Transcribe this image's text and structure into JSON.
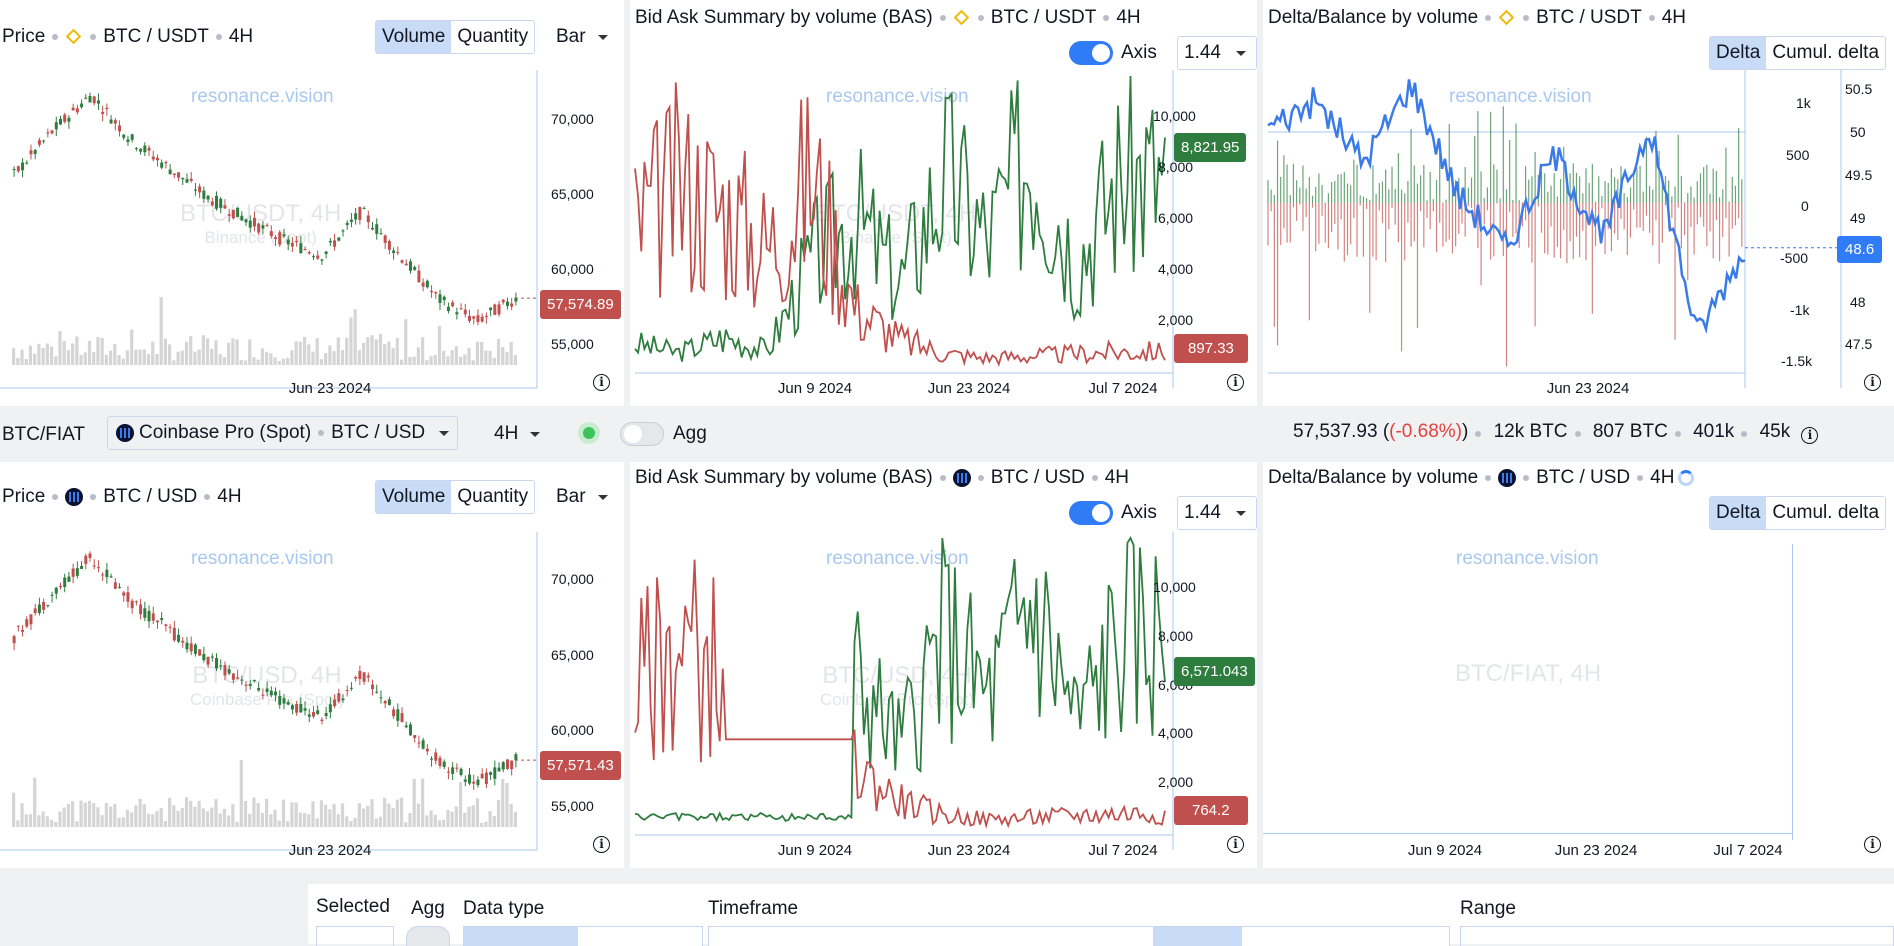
{
  "colors": {
    "up": "#2e7d3e",
    "down": "#c0504d",
    "accent": "#2f7cf6",
    "blueline": "#3b7be8",
    "watermark": "#a9c8f0",
    "volume": "#d5d5d5"
  },
  "watermark": "resonance.vision",
  "top": {
    "price": {
      "title": "Price",
      "pair": "BTC / USDT",
      "tf": "4H",
      "seg": [
        "Volume",
        "Quantity"
      ],
      "chart_type": "Bar",
      "ghost": "BTC/USDT, 4H",
      "ghost_sub": "Binance (Spot)",
      "yticks": [
        "70,000",
        "65,000",
        "60,000",
        "55,000"
      ],
      "xlabel": "Jun 23 2024",
      "last_price": "57,574.89"
    },
    "bas": {
      "title": "Bid Ask Summary by volume (BAS)",
      "pair": "BTC / USDT",
      "tf": "4H",
      "axis_label": "Axis",
      "ratio": "1.44",
      "ghost": "BTC/USDT, 4H",
      "ghost_sub": "Binance (Spot)",
      "yticks": [
        "10,000",
        "8,000",
        "6,000",
        "4,000",
        "2,000"
      ],
      "xlabels": [
        "Jun 9 2024",
        "Jun 23 2024",
        "Jul 7 2024"
      ],
      "bid_tag": "8,821.95",
      "ask_tag": "897.33"
    },
    "delta": {
      "title": "Delta/Balance by volume",
      "pair": "BTC / USDT",
      "tf": "4H",
      "seg": [
        "Delta",
        "Cumul. delta"
      ],
      "yticks_left": [
        "1k",
        "500",
        "0",
        "-500",
        "-1k",
        "-1.5k"
      ],
      "yticks_right": [
        "50.5",
        "50",
        "49.5",
        "49",
        "48",
        "47.5"
      ],
      "xlabel": "Jun 23 2024",
      "balance_tag": "48.6"
    }
  },
  "toolbar": {
    "group": "BTC/FIAT",
    "exchange": "Coinbase Pro (Spot)",
    "pair": "BTC / USD",
    "tf": "4H",
    "agg": "Agg",
    "stats": {
      "price": "57,537.93",
      "change": "(-0.68%)",
      "v1": "12k BTC",
      "v2": "807 BTC",
      "v3": "401k",
      "v4": "45k"
    }
  },
  "bottom": {
    "price": {
      "title": "Price",
      "pair": "BTC / USD",
      "tf": "4H",
      "seg": [
        "Volume",
        "Quantity"
      ],
      "chart_type": "Bar",
      "ghost": "BTC/USD, 4H",
      "ghost_sub": "Coinbase Pro (Spot)",
      "yticks": [
        "70,000",
        "65,000",
        "60,000",
        "55,000"
      ],
      "xlabel": "Jun 23 2024",
      "last_price": "57,571.43"
    },
    "bas": {
      "title": "Bid Ask Summary by volume (BAS)",
      "pair": "BTC / USD",
      "tf": "4H",
      "axis_label": "Axis",
      "ratio": "1.44",
      "ghost": "BTC/USD, 4H",
      "ghost_sub": "Coinbase Pro (Spot)",
      "yticks": [
        "10,000",
        "8,000",
        "6,000",
        "4,000",
        "2,000"
      ],
      "xlabels": [
        "Jun 9 2024",
        "Jun 23 2024",
        "Jul 7 2024"
      ],
      "bid_tag": "6,571.043",
      "ask_tag": "764.2"
    },
    "delta": {
      "title": "Delta/Balance by volume",
      "pair": "BTC / USD",
      "tf": "4H",
      "seg": [
        "Delta",
        "Cumul. delta"
      ],
      "ghost": "BTC/FIAT, 4H",
      "xlabels": [
        "Jun 9 2024",
        "Jun 23 2024",
        "Jul 7 2024"
      ]
    }
  },
  "controls": {
    "selected": "Selected",
    "agg": "Agg",
    "data_type": "Data type",
    "timeframe": "Timeframe",
    "range": "Range"
  },
  "chart_data": [
    {
      "type": "line",
      "title": "Price",
      "series": [
        {
          "name": "BTC / USDT",
          "values": [
            66000,
            69000,
            71500,
            68500,
            66500,
            64500,
            63000,
            61500,
            60500,
            63500,
            60500,
            57500,
            56000,
            57574.89
          ]
        }
      ],
      "ylim": [
        53000,
        72500
      ]
    },
    {
      "type": "line",
      "title": "Bid Ask Summary by volume (BAS)",
      "series": [
        {
          "name": "bid",
          "values": [
            1200,
            800,
            1500,
            900,
            5000,
            7000,
            4000,
            9000,
            6000,
            10500,
            5000,
            9000,
            8821.95
          ]
        },
        {
          "name": "ask",
          "values": [
            7000,
            9000,
            8000,
            6000,
            9500,
            3000,
            1500,
            800,
            600,
            700,
            800,
            900,
            897.33
          ]
        }
      ],
      "ylim": [
        0,
        11000
      ]
    },
    {
      "type": "line",
      "title": "Delta/Balance by volume",
      "series": [
        {
          "name": "balance",
          "values": [
            50,
            50.3,
            49.6,
            50.5,
            49.2,
            48.6,
            49.7,
            48.7,
            50,
            47.6,
            48.6
          ]
        }
      ],
      "ylim": [
        47.3,
        50.6
      ]
    }
  ]
}
